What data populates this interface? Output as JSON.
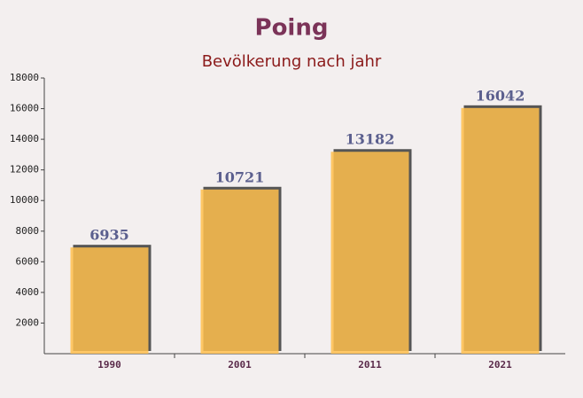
{
  "chart_data": {
    "type": "bar",
    "title": "Poing",
    "subtitle": "Bevölkerung nach jahr",
    "categories": [
      "1990",
      "2001",
      "2011",
      "2021"
    ],
    "values": [
      6935,
      10721,
      13182,
      16042
    ],
    "color": "#ffc04d",
    "ylim": [
      0,
      18000
    ],
    "yticks": [
      2000,
      4000,
      6000,
      8000,
      10000,
      12000,
      14000,
      16000,
      18000
    ]
  }
}
